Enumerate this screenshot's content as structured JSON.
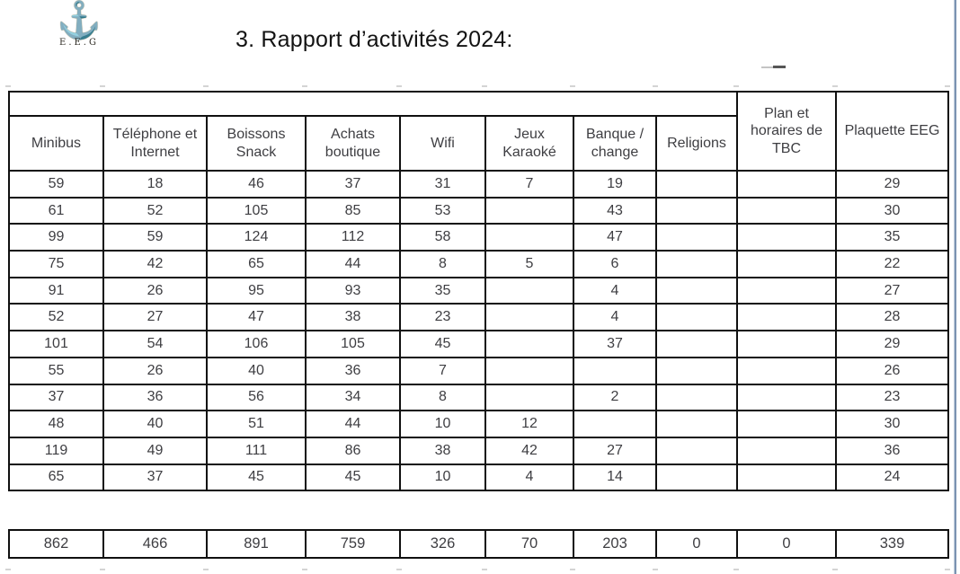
{
  "logo": {
    "icon": "anchor",
    "caption": "E.E.G"
  },
  "title": "3. Rapport d’activités 2024:",
  "table": {
    "column_headers": [
      "Minibus",
      "Téléphone et Internet",
      "Boissons Snack",
      "Achats boutique",
      "Wifi",
      "Jeux Karaoké",
      "Banque / change",
      "Religions",
      "Plan et horaires de TBC",
      "Plaquette EEG"
    ],
    "rows": [
      [
        "59",
        "18",
        "46",
        "37",
        "31",
        "7",
        "19",
        "",
        "",
        "29"
      ],
      [
        "61",
        "52",
        "105",
        "85",
        "53",
        "",
        "43",
        "",
        "",
        "30"
      ],
      [
        "99",
        "59",
        "124",
        "112",
        "58",
        "",
        "47",
        "",
        "",
        "35"
      ],
      [
        "75",
        "42",
        "65",
        "44",
        "8",
        "5",
        "6",
        "",
        "",
        "22"
      ],
      [
        "91",
        "26",
        "95",
        "93",
        "35",
        "",
        "4",
        "",
        "",
        "27"
      ],
      [
        "52",
        "27",
        "47",
        "38",
        "23",
        "",
        "4",
        "",
        "",
        "28"
      ],
      [
        "101",
        "54",
        "106",
        "105",
        "45",
        "",
        "37",
        "",
        "",
        "29"
      ],
      [
        "55",
        "26",
        "40",
        "36",
        "7",
        "",
        "",
        "",
        "",
        "26"
      ],
      [
        "37",
        "36",
        "56",
        "34",
        "8",
        "",
        "2",
        "",
        "",
        "23"
      ],
      [
        "48",
        "40",
        "51",
        "44",
        "10",
        "12",
        "",
        "",
        "",
        "30"
      ],
      [
        "119",
        "49",
        "111",
        "86",
        "38",
        "42",
        "27",
        "",
        "",
        "36"
      ],
      [
        "65",
        "37",
        "45",
        "45",
        "10",
        "4",
        "14",
        "",
        "",
        "24"
      ]
    ],
    "totals": [
      "862",
      "466",
      "891",
      "759",
      "326",
      "70",
      "203",
      "0",
      "0",
      "339"
    ]
  },
  "colors": {
    "table_border": "#101010",
    "cell_text": "#3e3e42",
    "anchor_gold": "#85783a",
    "right_edge_blue": "#7b93b2"
  }
}
